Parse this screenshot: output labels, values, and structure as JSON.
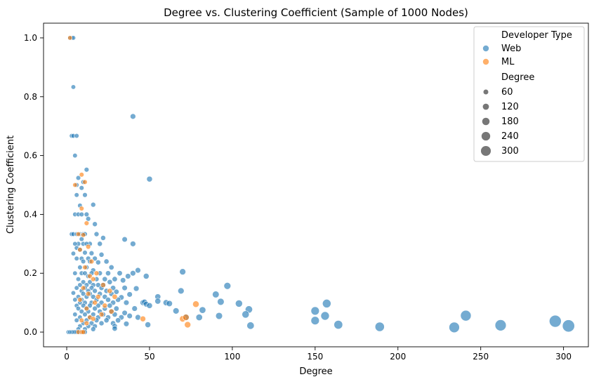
{
  "chart_data": {
    "type": "scatter",
    "title": "Degree vs. Clustering Coefficient (Sample of 1000 Nodes)",
    "xlabel": "Degree",
    "ylabel": "Clustering Coefficient",
    "xlim": [
      -14,
      315
    ],
    "ylim": [
      -0.05,
      1.05
    ],
    "xticks": [
      0,
      50,
      100,
      150,
      200,
      250,
      300
    ],
    "yticks": [
      0.0,
      0.2,
      0.4,
      0.6,
      0.8,
      1.0
    ],
    "ytick_labels": [
      "0.0",
      "0.2",
      "0.4",
      "0.6",
      "0.8",
      "1.0"
    ],
    "grid": false,
    "legend": {
      "placement": "top-right",
      "hue_title": "Developer Type",
      "size_title": "Degree",
      "size_levels": [
        60,
        120,
        180,
        240,
        300
      ]
    },
    "series": [
      {
        "name": "Web",
        "color": "#1f77b4",
        "points": [
          [
            2,
            1.0
          ],
          [
            3,
            1.0
          ],
          [
            4,
            1.0
          ],
          [
            4,
            0.833
          ],
          [
            3,
            0.667
          ],
          [
            4,
            0.667
          ],
          [
            6,
            0.667
          ],
          [
            5,
            0.6
          ],
          [
            40,
            0.733
          ],
          [
            12,
            0.552
          ],
          [
            50,
            0.52
          ],
          [
            7,
            0.524
          ],
          [
            10,
            0.51
          ],
          [
            9,
            0.49
          ],
          [
            6,
            0.5
          ],
          [
            11,
            0.466
          ],
          [
            6,
            0.466
          ],
          [
            8,
            0.43
          ],
          [
            16,
            0.433
          ],
          [
            5,
            0.4
          ],
          [
            7,
            0.4
          ],
          [
            9,
            0.4
          ],
          [
            12,
            0.4
          ],
          [
            13,
            0.385
          ],
          [
            17,
            0.367
          ],
          [
            3,
            0.333
          ],
          [
            4,
            0.333
          ],
          [
            6,
            0.333
          ],
          [
            8,
            0.333
          ],
          [
            10,
            0.333
          ],
          [
            11,
            0.333
          ],
          [
            18,
            0.333
          ],
          [
            22,
            0.32
          ],
          [
            9,
            0.316
          ],
          [
            35,
            0.315
          ],
          [
            40,
            0.3
          ],
          [
            20,
            0.3
          ],
          [
            14,
            0.3
          ],
          [
            10,
            0.3
          ],
          [
            7,
            0.3
          ],
          [
            5,
            0.3
          ],
          [
            12,
            0.3
          ],
          [
            6,
            0.286
          ],
          [
            8,
            0.28
          ],
          [
            11,
            0.27
          ],
          [
            15,
            0.268
          ],
          [
            21,
            0.263
          ],
          [
            4,
            0.267
          ],
          [
            13,
            0.25
          ],
          [
            17,
            0.25
          ],
          [
            9,
            0.25
          ],
          [
            6,
            0.25
          ],
          [
            24,
            0.24
          ],
          [
            19,
            0.237
          ],
          [
            10,
            0.24
          ],
          [
            14,
            0.24
          ],
          [
            27,
            0.22
          ],
          [
            12,
            0.22
          ],
          [
            8,
            0.22
          ],
          [
            16,
            0.21
          ],
          [
            43,
            0.21
          ],
          [
            70,
            0.205
          ],
          [
            5,
            0.2
          ],
          [
            9,
            0.2
          ],
          [
            11,
            0.2
          ],
          [
            15,
            0.2
          ],
          [
            20,
            0.2
          ],
          [
            25,
            0.2
          ],
          [
            32,
            0.2
          ],
          [
            40,
            0.2
          ],
          [
            13,
            0.19
          ],
          [
            37,
            0.19
          ],
          [
            48,
            0.19
          ],
          [
            7,
            0.18
          ],
          [
            18,
            0.18
          ],
          [
            23,
            0.18
          ],
          [
            29,
            0.18
          ],
          [
            34,
            0.176
          ],
          [
            10,
            0.17
          ],
          [
            14,
            0.17
          ],
          [
            26,
            0.17
          ],
          [
            8,
            0.16
          ],
          [
            12,
            0.16
          ],
          [
            16,
            0.16
          ],
          [
            19,
            0.16
          ],
          [
            22,
            0.16
          ],
          [
            97,
            0.157
          ],
          [
            6,
            0.15
          ],
          [
            11,
            0.15
          ],
          [
            15,
            0.15
          ],
          [
            21,
            0.15
          ],
          [
            28,
            0.15
          ],
          [
            35,
            0.15
          ],
          [
            42,
            0.148
          ],
          [
            69,
            0.14
          ],
          [
            9,
            0.14
          ],
          [
            13,
            0.14
          ],
          [
            17,
            0.14
          ],
          [
            24,
            0.14
          ],
          [
            30,
            0.137
          ],
          [
            4,
            0.133
          ],
          [
            10,
            0.13
          ],
          [
            14,
            0.13
          ],
          [
            20,
            0.13
          ],
          [
            27,
            0.13
          ],
          [
            38,
            0.128
          ],
          [
            90,
            0.128
          ],
          [
            7,
            0.12
          ],
          [
            12,
            0.12
          ],
          [
            16,
            0.12
          ],
          [
            23,
            0.12
          ],
          [
            33,
            0.118
          ],
          [
            55,
            0.12
          ],
          [
            5,
            0.11
          ],
          [
            9,
            0.11
          ],
          [
            18,
            0.11
          ],
          [
            25,
            0.11
          ],
          [
            31,
            0.11
          ],
          [
            55,
            0.105
          ],
          [
            8,
            0.1
          ],
          [
            11,
            0.1
          ],
          [
            15,
            0.1
          ],
          [
            21,
            0.1
          ],
          [
            28,
            0.1
          ],
          [
            36,
            0.1
          ],
          [
            46,
            0.1
          ],
          [
            47,
            0.102
          ],
          [
            60,
            0.1
          ],
          [
            93,
            0.103
          ],
          [
            104,
            0.097
          ],
          [
            6,
            0.09
          ],
          [
            10,
            0.09
          ],
          [
            14,
            0.09
          ],
          [
            19,
            0.09
          ],
          [
            26,
            0.09
          ],
          [
            48,
            0.095
          ],
          [
            50,
            0.09
          ],
          [
            62,
            0.097
          ],
          [
            110,
            0.077
          ],
          [
            7,
            0.08
          ],
          [
            12,
            0.08
          ],
          [
            17,
            0.08
          ],
          [
            23,
            0.08
          ],
          [
            30,
            0.08
          ],
          [
            41,
            0.08
          ],
          [
            82,
            0.075
          ],
          [
            66,
            0.072
          ],
          [
            9,
            0.07
          ],
          [
            13,
            0.07
          ],
          [
            20,
            0.07
          ],
          [
            27,
            0.07
          ],
          [
            35,
            0.065
          ],
          [
            150,
            0.072
          ],
          [
            157,
            0.097
          ],
          [
            108,
            0.06
          ],
          [
            5,
            0.06
          ],
          [
            11,
            0.06
          ],
          [
            16,
            0.06
          ],
          [
            22,
            0.06
          ],
          [
            29,
            0.06
          ],
          [
            38,
            0.055
          ],
          [
            92,
            0.055
          ],
          [
            156,
            0.055
          ],
          [
            241,
            0.056
          ],
          [
            8,
            0.05
          ],
          [
            14,
            0.05
          ],
          [
            19,
            0.05
          ],
          [
            25,
            0.05
          ],
          [
            33,
            0.05
          ],
          [
            43,
            0.05
          ],
          [
            72,
            0.05
          ],
          [
            80,
            0.05
          ],
          [
            6,
            0.04
          ],
          [
            12,
            0.04
          ],
          [
            18,
            0.04
          ],
          [
            24,
            0.04
          ],
          [
            31,
            0.04
          ],
          [
            150,
            0.039
          ],
          [
            295,
            0.037
          ],
          [
            10,
            0.03
          ],
          [
            15,
            0.03
          ],
          [
            21,
            0.03
          ],
          [
            28,
            0.03
          ],
          [
            36,
            0.028
          ],
          [
            49,
            0.025
          ],
          [
            164,
            0.025
          ],
          [
            8,
            0.02
          ],
          [
            13,
            0.02
          ],
          [
            17,
            0.02
          ],
          [
            29,
            0.02
          ],
          [
            111,
            0.022
          ],
          [
            189,
            0.018
          ],
          [
            234,
            0.016
          ],
          [
            262,
            0.023
          ],
          [
            303,
            0.021
          ],
          [
            7,
            0.01
          ],
          [
            11,
            0.01
          ],
          [
            16,
            0.01
          ],
          [
            29,
            0.012
          ],
          [
            1,
            0.0
          ],
          [
            2,
            0.0
          ],
          [
            3,
            0.0
          ],
          [
            4,
            0.0
          ],
          [
            5,
            0.0
          ],
          [
            6,
            0.0
          ],
          [
            7,
            0.0
          ],
          [
            8,
            0.0
          ],
          [
            9,
            0.0
          ],
          [
            10,
            0.0
          ],
          [
            11,
            0.0
          ]
        ]
      },
      {
        "name": "ML",
        "color": "#ff7f0e",
        "points": [
          [
            2,
            1.0
          ],
          [
            9,
            0.535
          ],
          [
            11,
            0.51
          ],
          [
            5,
            0.5
          ],
          [
            9,
            0.42
          ],
          [
            12,
            0.37
          ],
          [
            7,
            0.333
          ],
          [
            10,
            0.33
          ],
          [
            13,
            0.29
          ],
          [
            8,
            0.28
          ],
          [
            15,
            0.24
          ],
          [
            11,
            0.22
          ],
          [
            18,
            0.2
          ],
          [
            14,
            0.19
          ],
          [
            16,
            0.18
          ],
          [
            22,
            0.16
          ],
          [
            10,
            0.15
          ],
          [
            26,
            0.14
          ],
          [
            13,
            0.13
          ],
          [
            19,
            0.12
          ],
          [
            29,
            0.12
          ],
          [
            8,
            0.11
          ],
          [
            17,
            0.1
          ],
          [
            23,
            0.09
          ],
          [
            12,
            0.08
          ],
          [
            27,
            0.07
          ],
          [
            21,
            0.06
          ],
          [
            14,
            0.05
          ],
          [
            16,
            0.045
          ],
          [
            46,
            0.045
          ],
          [
            70,
            0.045
          ],
          [
            72,
            0.05
          ],
          [
            73,
            0.025
          ],
          [
            78,
            0.095
          ],
          [
            9,
            0.04
          ],
          [
            12,
            0.03
          ],
          [
            7,
            0.0
          ],
          [
            9,
            0.0
          ],
          [
            10,
            0.0
          ]
        ]
      }
    ]
  }
}
